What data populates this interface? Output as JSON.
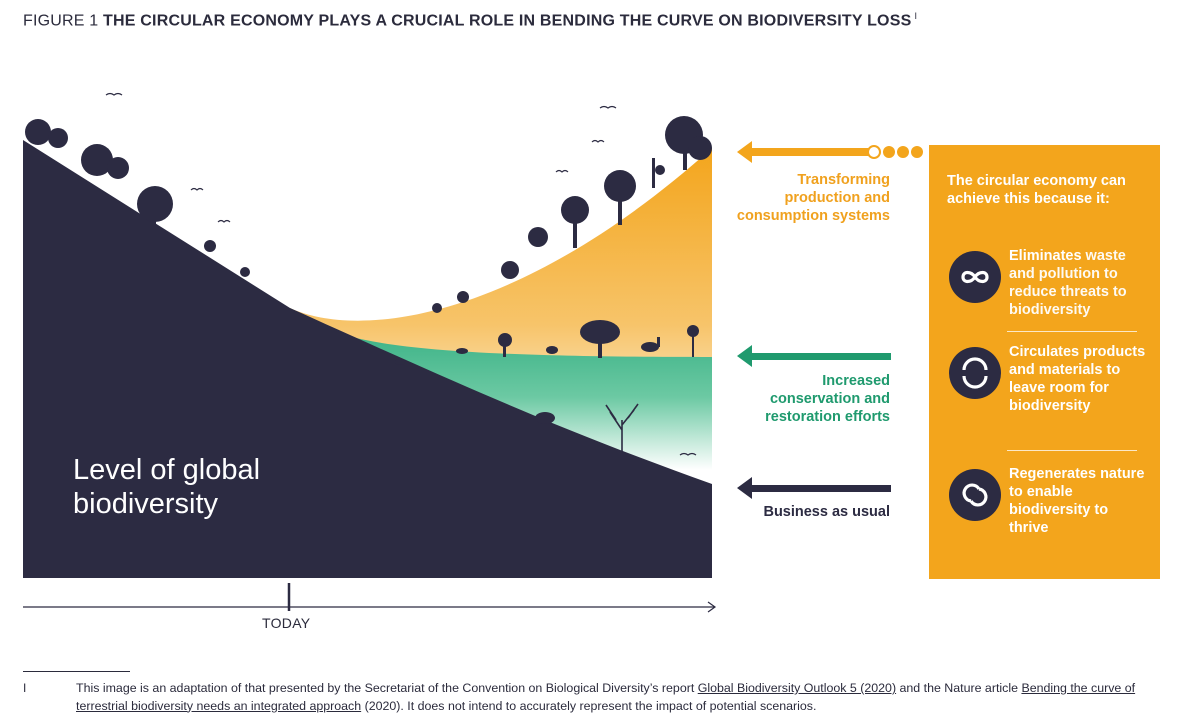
{
  "title": {
    "figure_number": "FIGURE 1",
    "heading": "THE CIRCULAR ECONOMY PLAYS A CRUCIAL ROLE IN BENDING THE CURVE ON BIODIVERSITY LOSS",
    "footnote_marker": "I"
  },
  "diagram": {
    "main_label": "Level of global biodiversity",
    "axis_marker": "TODAY",
    "arrows": [
      {
        "label": "Transforming production and consumption systems",
        "color": "#f0a11e"
      },
      {
        "label": "Increased conservation and restoration efforts",
        "color": "#1f9a6e"
      },
      {
        "label": "Business as usual",
        "color": "#2c2b42"
      }
    ],
    "colors": {
      "dark": "#2c2b42",
      "orange": "#f3a51c",
      "green": "#2aaa7c"
    }
  },
  "panel": {
    "intro": "The circular economy can achieve this because it:",
    "items": [
      {
        "icon": "infinity-icon",
        "bold": "Eliminates",
        "text": " waste and pollution to reduce threats to biodiversity"
      },
      {
        "icon": "circular-arrows-icon",
        "bold": "Circulates",
        "text": " products and materials to leave room for biodiversity"
      },
      {
        "icon": "regenerate-icon",
        "bold": "Regenerates",
        "text": " nature to enable biodiversity to thrive"
      }
    ]
  },
  "footnote": {
    "marker": "I",
    "text_1": "This image is an adaptation of that presented by the Secretariat of the Convention on Biological Diversity’s report ",
    "link_1": "Global Biodiversity Outlook 5 (2020)",
    "text_2": " and the Nature article ",
    "link_2": "Bending the curve of terrestrial biodiversity needs an integrated approach",
    "text_3": " (2020). It does not intend to accurately represent the impact of potential scenarios."
  }
}
